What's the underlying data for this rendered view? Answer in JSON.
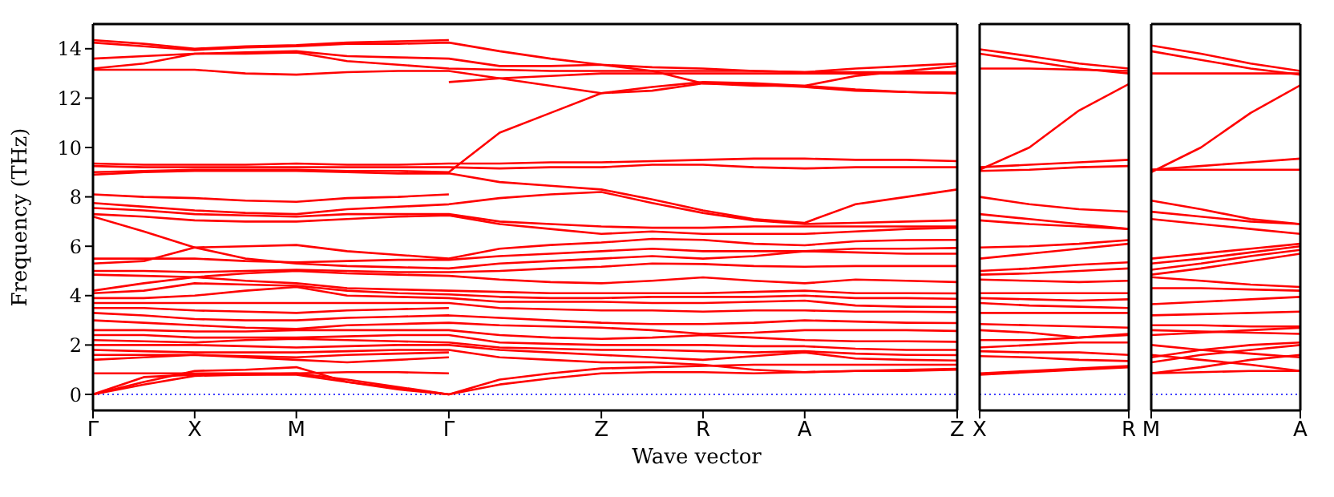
{
  "chart_data": [
    {
      "type": "line",
      "ylabel": "Frequency (THz)",
      "xlabel": "Wave vector",
      "color": "#ff0000",
      "ylim": [
        -0.65,
        15
      ],
      "yticks": [
        0,
        2,
        4,
        6,
        8,
        10,
        12,
        14
      ],
      "categories": [
        "Γ",
        null,
        "X",
        null,
        "M",
        null,
        null,
        "Γ",
        null,
        null,
        "Z",
        null,
        "R",
        null,
        "A",
        null,
        null,
        "Z"
      ],
      "ref_lines": [
        {
          "axis": "y",
          "value": 0,
          "color": "#0000ff",
          "line_style": "dotted"
        }
      ],
      "series": [
        {
          "values": [
            14.35,
            14.2,
            14.0,
            14.1,
            14.15,
            14.25,
            14.3,
            14.35,
            null,
            null,
            null,
            null,
            null,
            null,
            null,
            null,
            null,
            null
          ]
        },
        {
          "values": [
            14.25,
            14.1,
            13.95,
            14.05,
            14.1,
            14.2,
            14.2,
            14.25,
            13.9,
            13.6,
            13.35,
            13.25,
            13.2,
            13.1,
            13.05,
            13.2,
            13.3,
            13.4
          ]
        },
        {
          "values": [
            13.6,
            13.7,
            13.8,
            13.85,
            13.9,
            13.7,
            13.65,
            13.6,
            13.3,
            13.3,
            13.35,
            13.1,
            12.6,
            12.5,
            12.5,
            12.9,
            13.1,
            13.3
          ]
        },
        {
          "values": [
            13.2,
            13.4,
            13.8,
            13.8,
            13.85,
            13.5,
            13.35,
            13.2,
            13.15,
            13.1,
            13.1,
            13.1,
            13.1,
            13.1,
            13.05,
            13.05,
            13.05,
            13.05
          ]
        },
        {
          "values": [
            13.15,
            13.15,
            13.15,
            13.0,
            12.95,
            13.05,
            13.1,
            13.1,
            12.8,
            12.5,
            12.2,
            12.45,
            12.65,
            12.6,
            12.5,
            12.35,
            12.25,
            12.2
          ]
        },
        {
          "values": [
            null,
            null,
            null,
            null,
            null,
            null,
            null,
            12.65,
            12.8,
            12.9,
            13.0,
            13.0,
            13.0,
            13.0,
            13.0,
            13.0,
            13.0,
            13.0
          ]
        },
        {
          "values": [
            9.0,
            9.05,
            9.1,
            9.1,
            9.1,
            9.05,
            9.05,
            9.0,
            10.6,
            11.4,
            12.2,
            12.3,
            12.6,
            12.55,
            12.45,
            12.3,
            12.25,
            12.2
          ]
        },
        {
          "values": [
            9.35,
            9.3,
            9.3,
            9.3,
            9.35,
            9.3,
            9.3,
            9.35,
            9.35,
            9.4,
            9.4,
            9.45,
            9.5,
            9.55,
            9.55,
            9.5,
            9.5,
            9.45
          ]
        },
        {
          "values": [
            9.25,
            9.2,
            9.2,
            9.2,
            9.2,
            9.2,
            9.2,
            9.2,
            9.15,
            9.2,
            9.2,
            9.3,
            9.3,
            9.2,
            9.15,
            9.2,
            9.2,
            9.2
          ]
        },
        {
          "values": [
            8.9,
            9.0,
            9.05,
            9.05,
            9.05,
            9.0,
            8.95,
            8.95,
            8.6,
            8.45,
            8.3,
            7.9,
            7.45,
            7.1,
            6.95,
            7.7,
            8.0,
            8.3
          ]
        },
        {
          "values": [
            8.1,
            8.0,
            7.95,
            7.85,
            7.8,
            7.95,
            8.0,
            8.1,
            null,
            null,
            null,
            null,
            null,
            null,
            null,
            null,
            null,
            null
          ]
        },
        {
          "values": [
            7.75,
            7.6,
            7.45,
            7.35,
            7.3,
            7.5,
            7.6,
            7.7,
            7.95,
            8.1,
            8.2,
            7.75,
            7.35,
            7.05,
            6.9,
            6.95,
            7.0,
            7.05
          ]
        },
        {
          "values": [
            7.55,
            7.45,
            7.3,
            7.25,
            7.2,
            7.3,
            7.3,
            7.3,
            7.0,
            6.9,
            6.8,
            6.75,
            6.75,
            6.8,
            6.8,
            6.8,
            6.8,
            6.8
          ]
        },
        {
          "values": [
            7.3,
            7.2,
            7.05,
            7.0,
            7.0,
            7.1,
            7.2,
            7.25,
            6.9,
            6.7,
            6.5,
            6.6,
            6.5,
            6.5,
            6.5,
            6.6,
            6.7,
            6.75
          ]
        },
        {
          "values": [
            7.2,
            6.6,
            5.95,
            6.0,
            6.05,
            5.8,
            5.65,
            5.5,
            5.9,
            6.05,
            6.15,
            6.3,
            6.26,
            6.1,
            6.04,
            6.2,
            6.25,
            6.26
          ]
        },
        {
          "values": [
            5.5,
            5.5,
            5.5,
            5.4,
            5.35,
            5.4,
            5.45,
            5.45,
            5.6,
            5.7,
            5.8,
            5.9,
            5.8,
            5.8,
            5.8,
            5.9,
            5.9,
            5.93
          ]
        },
        {
          "values": [
            5.3,
            5.4,
            5.95,
            5.5,
            5.3,
            5.2,
            5.15,
            5.1,
            5.3,
            5.4,
            5.5,
            5.6,
            5.5,
            5.6,
            5.8,
            5.75,
            5.7,
            5.7
          ]
        },
        {
          "values": [
            5.0,
            5.0,
            4.95,
            5.0,
            5.05,
            5.0,
            4.95,
            4.95,
            5.0,
            5.1,
            5.17,
            5.3,
            5.28,
            5.2,
            5.17,
            5.2,
            5.2,
            5.2
          ]
        },
        {
          "values": [
            4.85,
            4.8,
            4.75,
            4.9,
            5.0,
            4.9,
            4.85,
            4.8,
            4.65,
            4.55,
            4.5,
            4.6,
            4.74,
            4.6,
            4.5,
            4.65,
            4.6,
            4.55
          ]
        },
        {
          "values": [
            4.2,
            4.5,
            4.75,
            4.6,
            4.5,
            4.3,
            4.25,
            4.2,
            4.15,
            4.1,
            4.1,
            4.1,
            4.1,
            4.15,
            4.2,
            4.1,
            4.1,
            4.09
          ]
        },
        {
          "values": [
            4.1,
            4.2,
            4.5,
            4.45,
            4.4,
            4.2,
            4.1,
            4.05,
            3.95,
            3.9,
            3.9,
            3.95,
            3.95,
            3.95,
            4.0,
            3.9,
            3.9,
            3.87
          ]
        },
        {
          "values": [
            3.9,
            3.9,
            4.0,
            4.2,
            4.35,
            4.0,
            3.95,
            3.9,
            3.75,
            3.75,
            3.75,
            3.7,
            3.7,
            3.75,
            3.8,
            3.6,
            3.55,
            3.54
          ]
        },
        {
          "values": [
            3.7,
            3.7,
            3.7,
            3.7,
            3.7,
            3.7,
            3.7,
            3.7,
            3.5,
            3.45,
            3.4,
            3.4,
            3.35,
            3.4,
            3.4,
            3.35,
            3.35,
            3.33
          ]
        },
        {
          "values": [
            3.5,
            3.5,
            3.4,
            3.35,
            3.3,
            3.4,
            3.45,
            3.5,
            null,
            null,
            null,
            null,
            null,
            null,
            null,
            null,
            null,
            null
          ]
        },
        {
          "values": [
            3.3,
            3.2,
            3.05,
            3.0,
            3.0,
            3.1,
            3.15,
            3.2,
            3.1,
            3.0,
            2.9,
            2.85,
            2.85,
            2.9,
            3.0,
            2.95,
            2.9,
            2.89
          ]
        },
        {
          "values": [
            3.0,
            2.9,
            2.8,
            2.7,
            2.65,
            2.8,
            2.85,
            2.9,
            2.8,
            2.75,
            2.7,
            2.6,
            2.45,
            2.5,
            2.6,
            2.6,
            2.6,
            2.57
          ]
        },
        {
          "values": [
            2.6,
            2.6,
            2.55,
            2.55,
            2.6,
            2.6,
            2.6,
            2.6,
            2.4,
            2.3,
            2.25,
            2.3,
            2.4,
            2.3,
            2.2,
            2.15,
            2.15,
            2.13
          ]
        },
        {
          "values": [
            2.4,
            2.4,
            2.3,
            2.3,
            2.3,
            2.35,
            2.4,
            2.4,
            2.1,
            2.05,
            2.0,
            2.0,
            2.0,
            1.95,
            1.95,
            1.85,
            1.8,
            1.8
          ]
        },
        {
          "values": [
            2.2,
            2.15,
            2.1,
            2.2,
            2.25,
            2.2,
            2.15,
            2.1,
            1.9,
            1.85,
            1.8,
            1.8,
            1.75,
            1.7,
            1.75,
            1.65,
            1.6,
            1.59
          ]
        },
        {
          "values": [
            2.0,
            2.0,
            2.0,
            1.95,
            1.9,
            1.95,
            2.0,
            2.0,
            1.8,
            1.7,
            1.6,
            1.5,
            1.4,
            1.55,
            1.7,
            1.45,
            1.4,
            1.37
          ]
        },
        {
          "values": [
            1.8,
            1.75,
            1.7,
            1.7,
            1.7,
            1.75,
            1.8,
            1.8,
            1.5,
            1.4,
            1.3,
            1.3,
            1.2,
            1.0,
            0.9,
            0.95,
            1.0,
            1.04
          ]
        },
        {
          "values": [
            1.6,
            1.6,
            1.6,
            1.55,
            1.5,
            1.6,
            1.65,
            1.7,
            null,
            null,
            null,
            null,
            null,
            null,
            null,
            null,
            null,
            null
          ]
        },
        {
          "values": [
            1.4,
            1.5,
            1.6,
            1.5,
            1.4,
            1.3,
            1.4,
            1.5,
            null,
            null,
            null,
            null,
            null,
            null,
            null,
            null,
            null,
            null
          ]
        },
        {
          "values": [
            0.85,
            0.85,
            0.85,
            0.85,
            0.85,
            0.9,
            0.9,
            0.85,
            null,
            null,
            null,
            null,
            null,
            null,
            null,
            null,
            null,
            null
          ]
        },
        {
          "values": [
            0,
            0.7,
            0.8,
            0.8,
            0.8,
            0.5,
            0.25,
            0,
            0.6,
            0.85,
            1.05,
            1.1,
            1.15,
            1.2,
            1.2,
            1.2,
            1.2,
            1.2
          ]
        },
        {
          "values": [
            0,
            0.4,
            0.75,
            0.8,
            0.85,
            0.6,
            0.3,
            0,
            0.4,
            0.65,
            0.85,
            0.9,
            0.9,
            0.85,
            0.9,
            0.95,
            0.95,
            1.0
          ]
        },
        {
          "values": [
            0,
            0.5,
            0.95,
            1.0,
            1.1,
            0.5,
            0.2,
            0,
            null,
            null,
            null,
            null,
            null,
            null,
            null,
            null,
            null,
            null
          ]
        }
      ]
    },
    {
      "type": "line",
      "color": "#ff0000",
      "tick_labels": "x",
      "ylim": [
        -0.65,
        15
      ],
      "yticks": [
        0,
        2,
        4,
        6,
        8,
        10,
        12,
        14
      ],
      "categories": [
        "X",
        null,
        null,
        "R"
      ],
      "ref_lines": [
        {
          "axis": "y",
          "value": 0,
          "color": "#0000ff",
          "line_style": "dotted"
        }
      ],
      "series": [
        {
          "values": [
            13.98,
            13.7,
            13.4,
            13.2
          ]
        },
        {
          "values": [
            13.8,
            13.5,
            13.2,
            13.0
          ]
        },
        {
          "values": [
            13.2,
            13.2,
            13.15,
            13.1
          ]
        },
        {
          "values": [
            9.1,
            10.0,
            11.5,
            12.57
          ]
        },
        {
          "values": [
            9.2,
            9.3,
            9.4,
            9.5
          ]
        },
        {
          "values": [
            9.05,
            9.1,
            9.2,
            9.25
          ]
        },
        {
          "values": [
            8.0,
            7.7,
            7.5,
            7.4
          ]
        },
        {
          "values": [
            7.3,
            7.1,
            6.9,
            6.7
          ]
        },
        {
          "values": [
            7.05,
            6.9,
            6.8,
            6.7
          ]
        },
        {
          "values": [
            5.95,
            6.0,
            6.1,
            6.25
          ]
        },
        {
          "values": [
            5.5,
            5.7,
            5.9,
            6.1
          ]
        },
        {
          "values": [
            5.0,
            5.1,
            5.25,
            5.35
          ]
        },
        {
          "values": [
            4.85,
            4.9,
            5.0,
            5.1
          ]
        },
        {
          "values": [
            4.65,
            4.6,
            4.55,
            4.6
          ]
        },
        {
          "values": [
            4.1,
            4.1,
            4.1,
            4.1
          ]
        },
        {
          "values": [
            3.9,
            3.85,
            3.8,
            3.85
          ]
        },
        {
          "values": [
            3.7,
            3.6,
            3.55,
            3.5
          ]
        },
        {
          "values": [
            3.3,
            3.3,
            3.3,
            3.3
          ]
        },
        {
          "values": [
            2.85,
            2.8,
            2.75,
            2.7
          ]
        },
        {
          "values": [
            2.6,
            2.5,
            2.3,
            2.4
          ]
        },
        {
          "values": [
            2.2,
            2.2,
            2.3,
            2.45
          ]
        },
        {
          "values": [
            1.9,
            2.0,
            2.1,
            2.1
          ]
        },
        {
          "values": [
            1.75,
            1.7,
            1.7,
            1.6
          ]
        },
        {
          "values": [
            1.55,
            1.5,
            1.4,
            1.35
          ]
        },
        {
          "values": [
            0.85,
            0.95,
            1.05,
            1.15
          ]
        },
        {
          "values": [
            0.8,
            0.9,
            1.0,
            1.1
          ]
        }
      ]
    },
    {
      "type": "line",
      "color": "#ff0000",
      "tick_labels": "x",
      "ylim": [
        -0.65,
        15
      ],
      "yticks": [
        0,
        2,
        4,
        6,
        8,
        10,
        12,
        14
      ],
      "categories": [
        "M",
        null,
        null,
        "A"
      ],
      "ref_lines": [
        {
          "axis": "y",
          "value": 0,
          "color": "#0000ff",
          "line_style": "dotted"
        }
      ],
      "series": [
        {
          "values": [
            14.13,
            13.8,
            13.4,
            13.1
          ]
        },
        {
          "values": [
            13.9,
            13.55,
            13.2,
            12.95
          ]
        },
        {
          "values": [
            13.0,
            13.0,
            13.0,
            13.0
          ]
        },
        {
          "values": [
            9.0,
            10.0,
            11.4,
            12.52
          ]
        },
        {
          "values": [
            9.1,
            9.25,
            9.4,
            9.55
          ]
        },
        {
          "values": [
            9.1,
            9.1,
            9.1,
            9.1
          ]
        },
        {
          "values": [
            7.85,
            7.5,
            7.1,
            6.9
          ]
        },
        {
          "values": [
            7.4,
            7.2,
            7.0,
            6.9
          ]
        },
        {
          "values": [
            7.1,
            6.9,
            6.7,
            6.5
          ]
        },
        {
          "values": [
            5.5,
            5.7,
            5.9,
            6.1
          ]
        },
        {
          "values": [
            5.3,
            5.5,
            5.75,
            6.0
          ]
        },
        {
          "values": [
            5.05,
            5.3,
            5.6,
            5.85
          ]
        },
        {
          "values": [
            4.85,
            5.1,
            5.4,
            5.7
          ]
        },
        {
          "values": [
            4.75,
            4.6,
            4.45,
            4.35
          ]
        },
        {
          "values": [
            4.3,
            4.3,
            4.25,
            4.2
          ]
        },
        {
          "values": [
            3.65,
            3.75,
            3.85,
            3.95
          ]
        },
        {
          "values": [
            3.2,
            3.25,
            3.3,
            3.35
          ]
        },
        {
          "values": [
            2.8,
            2.8,
            2.75,
            2.75
          ]
        },
        {
          "values": [
            2.6,
            2.55,
            2.5,
            2.45
          ]
        },
        {
          "values": [
            2.4,
            2.5,
            2.6,
            2.7
          ]
        },
        {
          "values": [
            2.0,
            1.8,
            1.65,
            1.5
          ]
        },
        {
          "values": [
            1.5,
            1.8,
            2.0,
            2.1
          ]
        },
        {
          "values": [
            1.3,
            1.6,
            1.8,
            2.0
          ]
        },
        {
          "values": [
            0.85,
            1.1,
            1.4,
            1.6
          ]
        },
        {
          "values": [
            0.85,
            0.9,
            0.95,
            0.95
          ]
        },
        {
          "values": [
            1.6,
            1.4,
            1.2,
            0.95
          ]
        }
      ]
    }
  ]
}
